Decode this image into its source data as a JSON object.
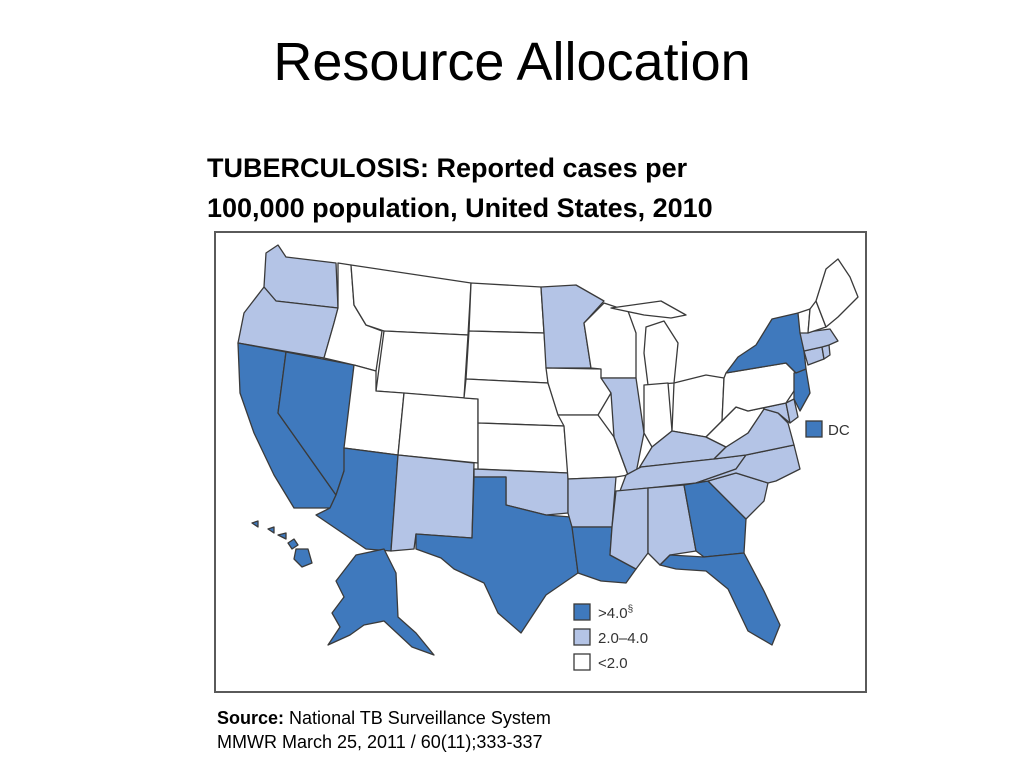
{
  "slide": {
    "title": "Resource Allocation"
  },
  "map": {
    "title_line1": "TUBERCULOSIS:  Reported cases per",
    "title_line2": "100,000 population,  United States, 2010",
    "colors": {
      "high": "#3f79bd",
      "mid": "#b4c4e6",
      "low": "#ffffff"
    },
    "dc_label": "DC",
    "dc_category": "high",
    "legend": [
      {
        "label": ">4.0",
        "superscript": "§",
        "category": "high"
      },
      {
        "label": "2.0–4.0",
        "category": "mid"
      },
      {
        "label": "<2.0",
        "category": "low"
      }
    ],
    "states": [
      {
        "name": "WA",
        "category": "mid"
      },
      {
        "name": "OR",
        "category": "mid"
      },
      {
        "name": "CA",
        "category": "high"
      },
      {
        "name": "NV",
        "category": "high"
      },
      {
        "name": "ID",
        "category": "low"
      },
      {
        "name": "MT",
        "category": "low"
      },
      {
        "name": "WY",
        "category": "low"
      },
      {
        "name": "UT",
        "category": "low"
      },
      {
        "name": "CO",
        "category": "low"
      },
      {
        "name": "AZ",
        "category": "high"
      },
      {
        "name": "NM",
        "category": "mid"
      },
      {
        "name": "ND",
        "category": "low"
      },
      {
        "name": "SD",
        "category": "low"
      },
      {
        "name": "NE",
        "category": "low"
      },
      {
        "name": "KS",
        "category": "low"
      },
      {
        "name": "OK",
        "category": "mid"
      },
      {
        "name": "TX",
        "category": "high"
      },
      {
        "name": "MN",
        "category": "mid"
      },
      {
        "name": "IA",
        "category": "low"
      },
      {
        "name": "MO",
        "category": "low"
      },
      {
        "name": "AR",
        "category": "mid"
      },
      {
        "name": "LA",
        "category": "high"
      },
      {
        "name": "WI",
        "category": "low"
      },
      {
        "name": "IL",
        "category": "mid"
      },
      {
        "name": "MI",
        "category": "low"
      },
      {
        "name": "IN",
        "category": "low"
      },
      {
        "name": "OH",
        "category": "low"
      },
      {
        "name": "KY",
        "category": "mid"
      },
      {
        "name": "TN",
        "category": "mid"
      },
      {
        "name": "MS",
        "category": "mid"
      },
      {
        "name": "AL",
        "category": "mid"
      },
      {
        "name": "GA",
        "category": "high"
      },
      {
        "name": "FL",
        "category": "high"
      },
      {
        "name": "SC",
        "category": "mid"
      },
      {
        "name": "NC",
        "category": "mid"
      },
      {
        "name": "VA",
        "category": "mid"
      },
      {
        "name": "WV",
        "category": "low"
      },
      {
        "name": "MD",
        "category": "mid"
      },
      {
        "name": "DE",
        "category": "mid"
      },
      {
        "name": "PA",
        "category": "low"
      },
      {
        "name": "NJ",
        "category": "high"
      },
      {
        "name": "NY",
        "category": "high"
      },
      {
        "name": "CT",
        "category": "mid"
      },
      {
        "name": "RI",
        "category": "mid"
      },
      {
        "name": "MA",
        "category": "mid"
      },
      {
        "name": "VT",
        "category": "low"
      },
      {
        "name": "NH",
        "category": "low"
      },
      {
        "name": "ME",
        "category": "low"
      },
      {
        "name": "AK",
        "category": "high"
      },
      {
        "name": "HI",
        "category": "high"
      }
    ]
  },
  "source": {
    "label": "Source:",
    "text": "National TB Surveillance System",
    "citation": "MMWR March 25, 2011 / 60(11);333-337"
  }
}
